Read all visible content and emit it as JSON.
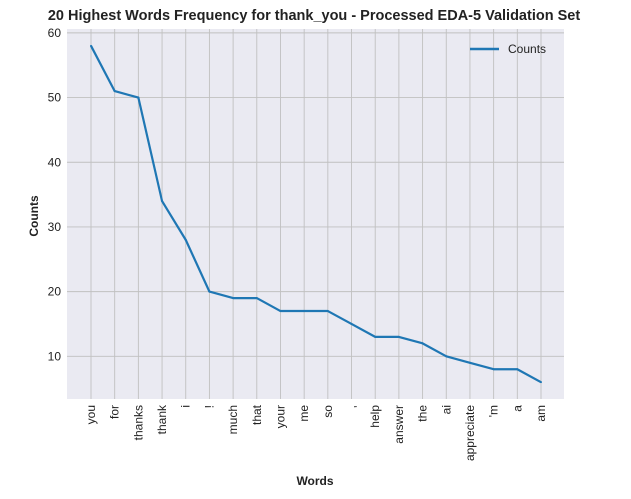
{
  "chart_data": {
    "type": "line",
    "title": "20 Highest Words Frequency for thank_you - Processed EDA-5 Validation Set",
    "xlabel": "Words",
    "ylabel": "Counts",
    "categories": [
      "you",
      "for",
      "thanks",
      "thank",
      "i",
      "!",
      "much",
      "that",
      "your",
      "me",
      "so",
      ",",
      "help",
      "answer",
      "the",
      "ai",
      "appreciate",
      "'m",
      "a",
      "am"
    ],
    "series": [
      {
        "name": "Counts",
        "values": [
          58,
          51,
          50,
          34,
          28,
          20,
          19,
          19,
          17,
          17,
          17,
          15,
          13,
          13,
          12,
          10,
          9,
          8,
          8,
          6
        ],
        "color": "#1f77b4"
      }
    ],
    "yticks": [
      10,
      20,
      30,
      40,
      50,
      60
    ],
    "ylim": [
      3.4,
      60.6
    ],
    "grid": true,
    "legend_position": "top-right",
    "colors": {
      "plot_background": "#eaeaf2",
      "grid": "#c0c0c0",
      "text": "#222222"
    }
  }
}
